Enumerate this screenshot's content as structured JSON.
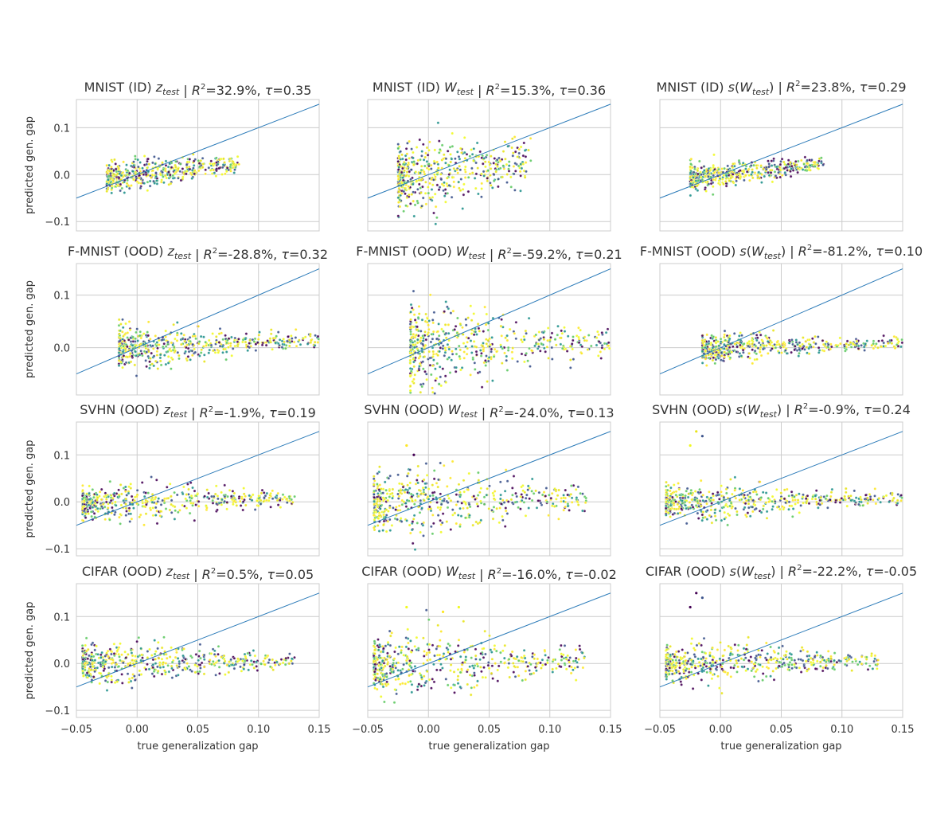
{
  "chart_data": [
    {
      "type": "scatter",
      "id": "mnist-id-z",
      "title": {
        "prefix": "MNIST (ID)  ",
        "sym": "z",
        "sub": "test",
        "fn": false,
        "r2": "32.9%",
        "tau": "0.35"
      },
      "xlabel": "",
      "ylabel": "predicted gen. gap",
      "xlim": [
        -0.05,
        0.15
      ],
      "ylim": [
        -0.12,
        0.16
      ],
      "xticks": [
        -0.05,
        0.0,
        0.05,
        0.1,
        0.15
      ],
      "yticks": [
        -0.1,
        0.0,
        0.1
      ],
      "show_xticklabels": false,
      "show_yticklabels": true,
      "reference_line": [
        [
          -0.05,
          -0.05
        ],
        [
          0.15,
          0.15
        ]
      ],
      "points": {
        "x_range": [
          -0.025,
          0.085
        ],
        "y_spread": 0.035,
        "slope": 0.28,
        "outliers": []
      }
    },
    {
      "type": "scatter",
      "id": "mnist-id-w",
      "title": {
        "prefix": "MNIST (ID) ",
        "sym": "W",
        "sub": "test",
        "fn": false,
        "r2": "15.3%",
        "tau": "0.36"
      },
      "xlabel": "",
      "ylabel": "",
      "xlim": [
        -0.05,
        0.15
      ],
      "ylim": [
        -0.12,
        0.16
      ],
      "xticks": [
        -0.05,
        0.0,
        0.05,
        0.1,
        0.15
      ],
      "yticks": [
        -0.1,
        0.0,
        0.1
      ],
      "show_xticklabels": false,
      "show_yticklabels": false,
      "reference_line": [
        [
          -0.05,
          -0.05
        ],
        [
          0.15,
          0.15
        ]
      ],
      "points": {
        "x_range": [
          -0.025,
          0.085
        ],
        "y_spread": 0.09,
        "slope": 0.35,
        "outliers": []
      }
    },
    {
      "type": "scatter",
      "id": "mnist-id-sw",
      "title": {
        "prefix": "MNIST (ID)  ",
        "sym": "W",
        "sub": "test",
        "fn": true,
        "r2": "23.8%",
        "tau": "0.29"
      },
      "xlabel": "",
      "ylabel": "",
      "xlim": [
        -0.05,
        0.15
      ],
      "ylim": [
        -0.12,
        0.16
      ],
      "xticks": [
        -0.05,
        0.0,
        0.05,
        0.1,
        0.15
      ],
      "yticks": [
        -0.1,
        0.0,
        0.1
      ],
      "show_xticklabels": false,
      "show_yticklabels": false,
      "reference_line": [
        [
          -0.05,
          -0.05
        ],
        [
          0.15,
          0.15
        ]
      ],
      "points": {
        "x_range": [
          -0.025,
          0.085
        ],
        "y_spread": 0.03,
        "slope": 0.25,
        "outliers": []
      }
    },
    {
      "type": "scatter",
      "id": "fmnist-ood-z",
      "title": {
        "prefix": "F-MNIST (OOD) ",
        "sym": "z",
        "sub": "test",
        "fn": false,
        "r2": "-28.8%",
        "tau": "0.32"
      },
      "xlabel": "",
      "ylabel": "predicted gen. gap",
      "xlim": [
        -0.05,
        0.15
      ],
      "ylim": [
        -0.09,
        0.16
      ],
      "xticks": [
        -0.05,
        0.0,
        0.05,
        0.1,
        0.15
      ],
      "yticks": [
        0.0,
        0.1
      ],
      "show_xticklabels": false,
      "show_yticklabels": true,
      "reference_line": [
        [
          -0.05,
          -0.05
        ],
        [
          0.15,
          0.15
        ]
      ],
      "points": {
        "x_range": [
          -0.015,
          0.15
        ],
        "y_spread": 0.045,
        "slope": 0.1,
        "outliers": []
      }
    },
    {
      "type": "scatter",
      "id": "fmnist-ood-w",
      "title": {
        "prefix": "F-MNIST (OOD) ",
        "sym": "W",
        "sub": "test",
        "fn": false,
        "r2": "-59.2%",
        "tau": "0.21"
      },
      "xlabel": "",
      "ylabel": "",
      "xlim": [
        -0.05,
        0.15
      ],
      "ylim": [
        -0.09,
        0.16
      ],
      "xticks": [
        -0.05,
        0.0,
        0.05,
        0.1,
        0.15
      ],
      "yticks": [
        0.0,
        0.1
      ],
      "show_xticklabels": false,
      "show_yticklabels": false,
      "reference_line": [
        [
          -0.05,
          -0.05
        ],
        [
          0.15,
          0.15
        ]
      ],
      "points": {
        "x_range": [
          -0.015,
          0.15
        ],
        "y_spread": 0.09,
        "slope": 0.1,
        "outliers": []
      }
    },
    {
      "type": "scatter",
      "id": "fmnist-ood-sw",
      "title": {
        "prefix": "F-MNIST (OOD) ",
        "sym": "W",
        "sub": "test",
        "fn": true,
        "r2": "-81.2%",
        "tau": "0.10"
      },
      "xlabel": "",
      "ylabel": "",
      "xlim": [
        -0.05,
        0.15
      ],
      "ylim": [
        -0.09,
        0.16
      ],
      "xticks": [
        -0.05,
        0.0,
        0.05,
        0.1,
        0.15
      ],
      "yticks": [
        0.0,
        0.1
      ],
      "show_xticklabels": false,
      "show_yticklabels": false,
      "reference_line": [
        [
          -0.05,
          -0.05
        ],
        [
          0.15,
          0.15
        ]
      ],
      "points": {
        "x_range": [
          -0.015,
          0.15
        ],
        "y_spread": 0.03,
        "slope": 0.06,
        "outliers": []
      }
    },
    {
      "type": "scatter",
      "id": "svhn-ood-z",
      "title": {
        "prefix": "SVHN (OOD) ",
        "sym": "z",
        "sub": "test",
        "fn": false,
        "r2": "-1.9%",
        "tau": "0.19"
      },
      "xlabel": "",
      "ylabel": "predicted gen. gap",
      "xlim": [
        -0.05,
        0.15
      ],
      "ylim": [
        -0.115,
        0.17
      ],
      "xticks": [
        -0.05,
        0.0,
        0.05,
        0.1,
        0.15
      ],
      "yticks": [
        -0.1,
        0.0,
        0.1
      ],
      "show_xticklabels": false,
      "show_yticklabels": true,
      "reference_line": [
        [
          -0.05,
          -0.05
        ],
        [
          0.15,
          0.15
        ]
      ],
      "points": {
        "x_range": [
          -0.045,
          0.13
        ],
        "y_spread": 0.045,
        "slope": 0.05,
        "outliers": []
      }
    },
    {
      "type": "scatter",
      "id": "svhn-ood-w",
      "title": {
        "prefix": "SVHN (OOD) ",
        "sym": "W",
        "sub": "test",
        "fn": false,
        "r2": "-24.0%",
        "tau": "0.13"
      },
      "xlabel": "",
      "ylabel": "",
      "xlim": [
        -0.05,
        0.15
      ],
      "ylim": [
        -0.115,
        0.17
      ],
      "xticks": [
        -0.05,
        0.0,
        0.05,
        0.1,
        0.15
      ],
      "yticks": [
        -0.1,
        0.0,
        0.1
      ],
      "show_xticklabels": false,
      "show_yticklabels": false,
      "reference_line": [
        [
          -0.05,
          -0.05
        ],
        [
          0.15,
          0.15
        ]
      ],
      "points": {
        "x_range": [
          -0.045,
          0.13
        ],
        "y_spread": 0.08,
        "slope": 0.05,
        "outliers": [
          [
            -0.018,
            0.12
          ],
          [
            -0.012,
            0.1
          ]
        ]
      }
    },
    {
      "type": "scatter",
      "id": "svhn-ood-sw",
      "title": {
        "prefix": "SVHN (OOD) ",
        "sym": "W",
        "sub": "test",
        "fn": true,
        "r2": "-0.9%",
        "tau": "0.24"
      },
      "xlabel": "",
      "ylabel": "",
      "xlim": [
        -0.05,
        0.15
      ],
      "ylim": [
        -0.115,
        0.17
      ],
      "xticks": [
        -0.05,
        0.0,
        0.05,
        0.1,
        0.15
      ],
      "yticks": [
        -0.1,
        0.0,
        0.1
      ],
      "show_xticklabels": false,
      "show_yticklabels": false,
      "reference_line": [
        [
          -0.05,
          -0.05
        ],
        [
          0.15,
          0.15
        ]
      ],
      "points": {
        "x_range": [
          -0.045,
          0.15
        ],
        "y_spread": 0.045,
        "slope": 0.05,
        "outliers": [
          [
            -0.015,
            0.14
          ],
          [
            -0.02,
            0.15
          ],
          [
            -0.025,
            0.12
          ]
        ]
      }
    },
    {
      "type": "scatter",
      "id": "cifar-ood-z",
      "title": {
        "prefix": "CIFAR (OOD) ",
        "sym": "z",
        "sub": "test",
        "fn": false,
        "r2": "0.5%",
        "tau": "0.05"
      },
      "xlabel": "true generalization gap",
      "ylabel": "predicted gen. gap",
      "xlim": [
        -0.05,
        0.15
      ],
      "ylim": [
        -0.115,
        0.17
      ],
      "xticks": [
        -0.05,
        0.0,
        0.05,
        0.1,
        0.15
      ],
      "yticks": [
        -0.1,
        0.0,
        0.1
      ],
      "show_xticklabels": true,
      "show_yticklabels": true,
      "reference_line": [
        [
          -0.05,
          -0.05
        ],
        [
          0.15,
          0.15
        ]
      ],
      "points": {
        "x_range": [
          -0.045,
          0.13
        ],
        "y_spread": 0.05,
        "slope": 0.04,
        "outliers": []
      }
    },
    {
      "type": "scatter",
      "id": "cifar-ood-w",
      "title": {
        "prefix": "CIFAR (OOD) ",
        "sym": "W",
        "sub": "test",
        "fn": false,
        "r2": "-16.0%",
        "tau": "-0.02"
      },
      "xlabel": "true generalization gap",
      "ylabel": "",
      "xlim": [
        -0.05,
        0.15
      ],
      "ylim": [
        -0.115,
        0.17
      ],
      "xticks": [
        -0.05,
        0.0,
        0.05,
        0.1,
        0.15
      ],
      "yticks": [
        -0.1,
        0.0,
        0.1
      ],
      "show_xticklabels": true,
      "show_yticklabels": false,
      "reference_line": [
        [
          -0.05,
          -0.05
        ],
        [
          0.15,
          0.15
        ]
      ],
      "points": {
        "x_range": [
          -0.045,
          0.13
        ],
        "y_spread": 0.08,
        "slope": 0.04,
        "outliers": [
          [
            -0.018,
            0.12
          ],
          [
            0.012,
            0.11
          ],
          [
            0.025,
            0.12
          ]
        ]
      }
    },
    {
      "type": "scatter",
      "id": "cifar-ood-sw",
      "title": {
        "prefix": "CIFAR (OOD) ",
        "sym": "W",
        "sub": "test",
        "fn": true,
        "r2": "-22.2%",
        "tau": "-0.05"
      },
      "xlabel": "true generalization gap",
      "ylabel": "",
      "xlim": [
        -0.05,
        0.15
      ],
      "ylim": [
        -0.115,
        0.17
      ],
      "xticks": [
        -0.05,
        0.0,
        0.05,
        0.1,
        0.15
      ],
      "yticks": [
        -0.1,
        0.0,
        0.1
      ],
      "show_xticklabels": true,
      "show_yticklabels": false,
      "reference_line": [
        [
          -0.05,
          -0.05
        ],
        [
          0.15,
          0.15
        ]
      ],
      "points": {
        "x_range": [
          -0.045,
          0.13
        ],
        "y_spread": 0.05,
        "slope": 0.04,
        "outliers": [
          [
            -0.015,
            0.14
          ],
          [
            -0.02,
            0.15
          ],
          [
            -0.025,
            0.12
          ]
        ]
      }
    }
  ],
  "colors": {
    "grid": "#cccccc",
    "spine": "#cccccc",
    "line": "#2a7ab8",
    "text": "#333333",
    "palette": [
      "#440154",
      "#3b528b",
      "#21918c",
      "#5ec962",
      "#fde725",
      "#e8e419",
      "#f0f921"
    ]
  }
}
